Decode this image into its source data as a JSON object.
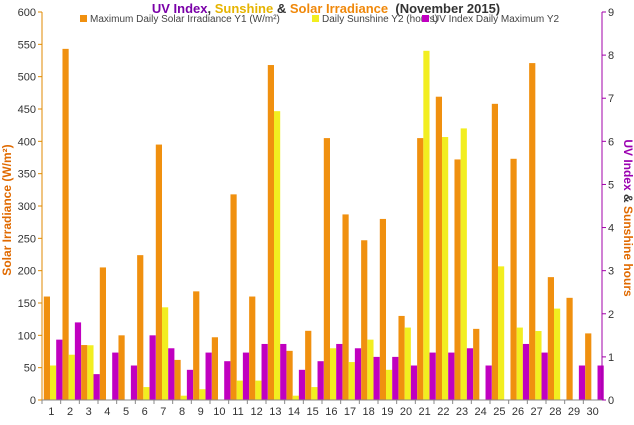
{
  "chart_data": {
    "type": "bar",
    "title": [
      {
        "text": "UV Index",
        "color": "#7a00a8"
      },
      {
        "text": ", ",
        "color": "#333333"
      },
      {
        "text": "Sunshine",
        "color": "#e6b400"
      },
      {
        "text": " & ",
        "color": "#333333"
      },
      {
        "text": "Solar Irradiance",
        "color": "#f0880a"
      },
      {
        "text": "  (November 2015)",
        "color": "#333333"
      }
    ],
    "ylabel_left": "Solar Irradiance (W/m²)",
    "ylabel_left_color": "#e06a00",
    "ylabel_right_parts": [
      {
        "text": "UV Index",
        "color": "#9b00b0"
      },
      {
        "text": " & ",
        "color": "#333333"
      },
      {
        "text": "Sunshine hours",
        "color": "#e06a00"
      }
    ],
    "ylim_left": [
      0,
      600
    ],
    "ylim_right": [
      0,
      9
    ],
    "yticks_left": [
      "0",
      "50",
      "100",
      "150",
      "200",
      "250",
      "300",
      "350",
      "400",
      "450",
      "500",
      "550",
      "600"
    ],
    "yticks_right": [
      "0",
      "1",
      "2",
      "3",
      "4",
      "5",
      "6",
      "7",
      "8",
      "9"
    ],
    "categories": [
      "1",
      "2",
      "3",
      "4",
      "5",
      "6",
      "7",
      "8",
      "9",
      "10",
      "11",
      "12",
      "13",
      "14",
      "15",
      "16",
      "17",
      "18",
      "19",
      "20",
      "21",
      "22",
      "23",
      "24",
      "25",
      "26",
      "27",
      "28",
      "29",
      "30"
    ],
    "legend_position": "top",
    "grid": false,
    "series": [
      {
        "name": "Maximum Daily Solar Irradiance Y1 (W/m²)",
        "axis": "left",
        "color": "#f0900f",
        "values": [
          160,
          543,
          85,
          205,
          100,
          224,
          395,
          62,
          168,
          97,
          318,
          160,
          518,
          76,
          107,
          405,
          287,
          247,
          280,
          130,
          405,
          469,
          372,
          110,
          458,
          373,
          521,
          190,
          158,
          103
        ]
      },
      {
        "name": "Daily Sunshine Y2 (hours)",
        "axis": "right",
        "color": "#f2ee20",
        "values": [
          0.8,
          1.05,
          1.27,
          0.0,
          0.0,
          0.3,
          2.15,
          0.1,
          0.25,
          0.0,
          0.45,
          0.45,
          6.7,
          0.1,
          0.3,
          1.2,
          0.88,
          1.4,
          0.7,
          1.68,
          8.1,
          6.1,
          6.3,
          0.0,
          3.1,
          1.68,
          1.6,
          2.12,
          0.0,
          0.0
        ]
      },
      {
        "name": "UV Index Daily Maximum Y2",
        "axis": "right",
        "color": "#c000c0",
        "values": [
          1.4,
          1.8,
          0.6,
          1.1,
          0.8,
          1.5,
          1.2,
          0.7,
          1.1,
          0.9,
          1.1,
          1.3,
          1.3,
          0.7,
          0.9,
          1.3,
          1.2,
          1.0,
          1.0,
          0.8,
          1.1,
          1.1,
          1.2,
          0.8,
          0.0,
          1.3,
          1.1,
          0.0,
          0.8,
          0.8
        ]
      }
    ]
  }
}
